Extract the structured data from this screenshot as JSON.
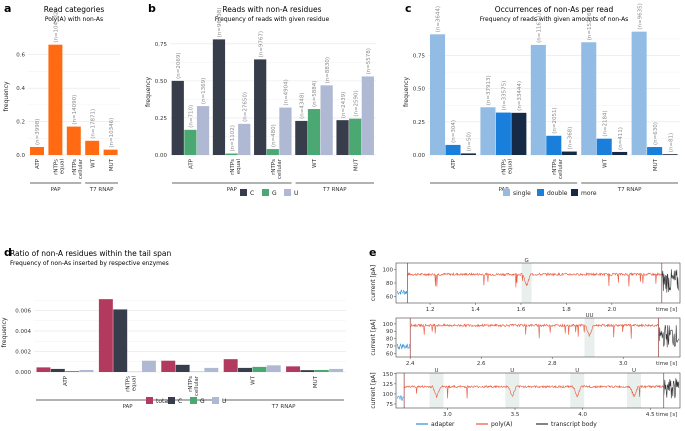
{
  "chart_data": [
    {
      "id": "a",
      "panel_label": "a",
      "type": "bar",
      "title": "Read categories",
      "subtitle": "Poly(A) with non-As",
      "ylabel": "frequency",
      "xlabel": "",
      "ylim": [
        0,
        0.7
      ],
      "yticks": [
        "0.0",
        "0.2",
        "0.4",
        "0.6"
      ],
      "ytick_values": [
        0,
        0.2,
        0.4,
        0.6
      ],
      "categories": [
        "ATP",
        "rNTPs equal",
        "rNTPs cellular",
        "WT",
        "MUT"
      ],
      "values": [
        0.048,
        0.66,
        0.17,
        0.085,
        0.032
      ],
      "n_labels": [
        "(n=3998)",
        "(n=104932)",
        "(n=14090)",
        "(n=17871)",
        "(n=10346)"
      ],
      "groups": [
        {
          "name": "PAP",
          "from": 0,
          "to": 2
        },
        {
          "name": "T7 RNAP",
          "from": 3,
          "to": 4
        }
      ],
      "color": "#FF6A13"
    },
    {
      "id": "b",
      "panel_label": "b",
      "type": "bar",
      "title": "Reads with non-A residues",
      "subtitle": "Frequency of reads with given residue",
      "ylabel": "frequency",
      "ylim": [
        0,
        0.85
      ],
      "yticks": [
        "0.00",
        "0.25",
        "0.50",
        "0.75"
      ],
      "ytick_values": [
        0,
        0.25,
        0.5,
        0.75
      ],
      "categories": [
        "ATP",
        "rNTPs equal",
        "rNTPs cellular",
        "WT",
        "MUT"
      ],
      "series": [
        {
          "name": "C",
          "color": "#373D4A",
          "values": [
            0.5,
            0.78,
            0.645,
            0.23,
            0.235
          ],
          "n_labels": [
            "(n=2069)",
            "(n=96938)",
            "(n=9767)",
            "(n=4348)",
            "(n=2439)"
          ]
        },
        {
          "name": "G",
          "color": "#4BA872",
          "values": [
            0.17,
            0.01,
            0.04,
            0.31,
            0.245
          ],
          "n_labels": [
            "(n=710)",
            "(n=1102)",
            "(n=480)",
            "(n=5884)",
            "(n=2590)"
          ]
        },
        {
          "name": "U",
          "color": "#AFB9D3",
          "values": [
            0.33,
            0.21,
            0.32,
            0.47,
            0.53
          ],
          "n_labels": [
            "(n=1369)",
            "(n=27650)",
            "(n=4904)",
            "(n=8830)",
            "(n=5578)"
          ]
        }
      ],
      "groups": [
        {
          "name": "PAP",
          "from": 0,
          "to": 2
        },
        {
          "name": "T7 RNAP",
          "from": 3,
          "to": 4
        }
      ]
    },
    {
      "id": "c",
      "panel_label": "c",
      "type": "bar",
      "title": "Occurrences of non-As per read",
      "subtitle": "Frequency of reads with given amounts of non-As",
      "ylabel": "frequency",
      "ylim": [
        0,
        0.95
      ],
      "yticks": [
        "0.00",
        "0.25",
        "0.50",
        "0.75"
      ],
      "ytick_values": [
        0,
        0.25,
        0.5,
        0.75
      ],
      "categories": [
        "ATP",
        "rNTPs equal",
        "rNTPs cellular",
        "WT",
        "MUT"
      ],
      "series": [
        {
          "name": "single",
          "color": "#92BCE3",
          "values": [
            0.91,
            0.36,
            0.83,
            0.85,
            0.93
          ],
          "n_labels": [
            "(n=3644)",
            "(n=37913)",
            "(n=11671)",
            "(n=15276)",
            "(n=9635)"
          ]
        },
        {
          "name": "double",
          "color": "#1A7FDB",
          "values": [
            0.076,
            0.32,
            0.145,
            0.123,
            0.06
          ],
          "n_labels": [
            "(n=304)",
            "(n=33575)",
            "(n=2051)",
            "(n=2184)",
            "(n=630)"
          ]
        },
        {
          "name": "more",
          "color": "#172A45",
          "values": [
            0.012,
            0.318,
            0.026,
            0.023,
            0.006
          ],
          "n_labels": [
            "(n=50)",
            "(n=33444)",
            "(n=368)",
            "(n=411)",
            "(n=81)"
          ]
        }
      ],
      "groups": [
        {
          "name": "PAP",
          "from": 0,
          "to": 2
        },
        {
          "name": "T7 RNAP",
          "from": 3,
          "to": 4
        }
      ]
    },
    {
      "id": "d",
      "panel_label": "d",
      "type": "bar",
      "title": "Ratio of non-A residues within the tail span",
      "subtitle": "Frequency of non-As inserted by respective enzymes",
      "ylabel": "frequency",
      "ylim": [
        0,
        0.0077
      ],
      "yticks": [
        "0.000",
        "0.002",
        "0.004",
        "0.006"
      ],
      "ytick_values": [
        0,
        0.002,
        0.004,
        0.006
      ],
      "categories": [
        "ATP",
        "rNTPs equal",
        "rNTPs cellular",
        "WT",
        "MUT"
      ],
      "series": [
        {
          "name": "total",
          "color": "#B23A5E",
          "values": [
            0.00045,
            0.0071,
            0.0011,
            0.00125,
            0.00055
          ]
        },
        {
          "name": "C",
          "color": "#373D4A",
          "values": [
            0.0003,
            0.0061,
            0.0007,
            0.0004,
            0.00018
          ]
        },
        {
          "name": "G",
          "color": "#4BA872",
          "values": [
            0.0001,
            2e-05,
            3e-05,
            0.0005,
            0.0002
          ]
        },
        {
          "name": "U",
          "color": "#AFB9D3",
          "values": [
            0.0002,
            0.0011,
            0.0004,
            0.00065,
            0.0003
          ]
        }
      ],
      "groups": [
        {
          "name": "PAP",
          "from": 0,
          "to": 2
        },
        {
          "name": "T7 RNAP",
          "from": 3,
          "to": 4
        }
      ]
    },
    {
      "id": "e",
      "panel_label": "e",
      "type": "line",
      "title": "",
      "ylabel": "current [pA]",
      "xlabel": "time [s]",
      "legend": [
        {
          "name": "adapter",
          "color": "#2F8FD6"
        },
        {
          "name": "poly(A)",
          "color": "#E8573B"
        },
        {
          "name": "transcript body",
          "color": "#333333"
        }
      ],
      "tracks": [
        {
          "x_ticks": [
            1.2,
            1.4,
            1.6,
            1.8,
            2.0
          ],
          "x_tick_labels": [
            "1.2",
            "1.4",
            "1.6",
            "1.8",
            "2.0"
          ],
          "xlim": [
            1.05,
            2.3
          ],
          "yticks": [
            60,
            80,
            100
          ],
          "ytick_labels": [
            "60",
            "80",
            "100"
          ],
          "ylim": [
            50,
            110
          ],
          "baseline": 93,
          "adapter_end": 1.1,
          "body_start": 2.22,
          "events": [
            {
              "x": 1.625,
              "label": "G",
              "color": "#F2A900"
            }
          ]
        },
        {
          "x_ticks": [
            2.4,
            2.6,
            2.8,
            3.0
          ],
          "x_tick_labels": [
            "2.4",
            "2.6",
            "2.8",
            "3.0"
          ],
          "xlim": [
            2.36,
            3.16
          ],
          "yticks": [
            60,
            70,
            80,
            90,
            100
          ],
          "ytick_labels": [
            "60",
            "70",
            "80",
            "90",
            "100"
          ],
          "ylim": [
            55,
            108
          ],
          "baseline": 98,
          "adapter_end": 2.4,
          "body_start": 3.1,
          "events": [
            {
              "x": 2.905,
              "label": "UU",
              "color": "#C0232C"
            }
          ]
        },
        {
          "x_ticks": [
            3.0,
            3.5,
            4.0,
            4.5
          ],
          "x_tick_labels": [
            "3.0",
            "3.5",
            "4.0",
            "4.5"
          ],
          "xlim": [
            2.62,
            4.72
          ],
          "yticks": [
            75,
            100,
            125,
            150
          ],
          "ytick_labels": [
            "75",
            "100",
            "125",
            "150"
          ],
          "ylim": [
            65,
            152
          ],
          "baseline": 118,
          "adapter_end": 2.68,
          "body_start": 4.6,
          "events": [
            {
              "x": 2.92,
              "label": "U",
              "color": "#C0232C"
            },
            {
              "x": 3.48,
              "label": "U",
              "color": "#C0232C"
            },
            {
              "x": 3.96,
              "label": "U",
              "color": "#C0232C"
            },
            {
              "x": 4.38,
              "label": "U",
              "color": "#C0232C"
            }
          ]
        }
      ]
    }
  ]
}
